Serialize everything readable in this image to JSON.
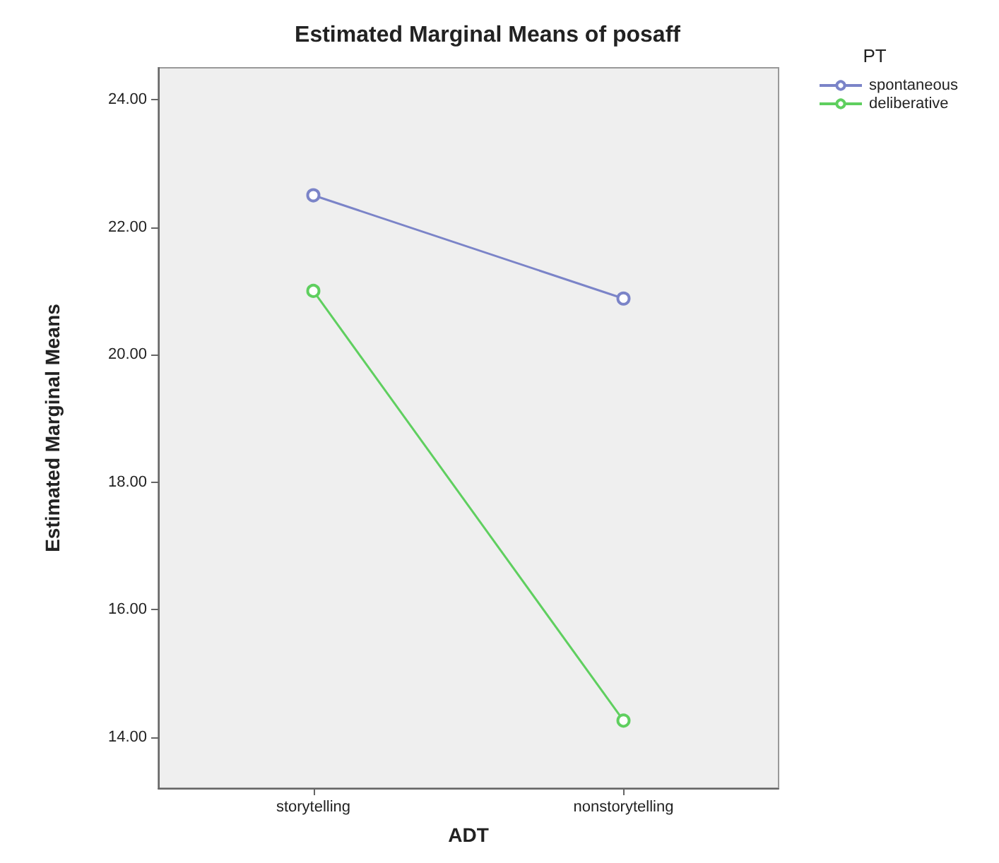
{
  "chart_data": {
    "type": "line",
    "title": "Estimated Marginal Means of posaff",
    "xlabel": "ADT",
    "ylabel": "Estimated Marginal Means",
    "legend_title": "PT",
    "categories": [
      "storytelling",
      "nonstorytelling"
    ],
    "series": [
      {
        "name": "spontaneous",
        "color": "#7b84c8",
        "values": [
          22.5,
          20.88
        ]
      },
      {
        "name": "deliberative",
        "color": "#5fcf5f",
        "values": [
          21.0,
          14.26
        ]
      }
    ],
    "ylim": [
      13.2,
      24.5
    ],
    "yticks": [
      {
        "value": 14,
        "label": "14.00"
      },
      {
        "value": 16,
        "label": "16.00"
      },
      {
        "value": 18,
        "label": "18.00"
      },
      {
        "value": 20,
        "label": "20.00"
      },
      {
        "value": 22,
        "label": "22.00"
      },
      {
        "value": 24,
        "label": "24.00"
      }
    ],
    "grid": false,
    "legend": "right",
    "marker": "circle",
    "line_style": "solid"
  }
}
